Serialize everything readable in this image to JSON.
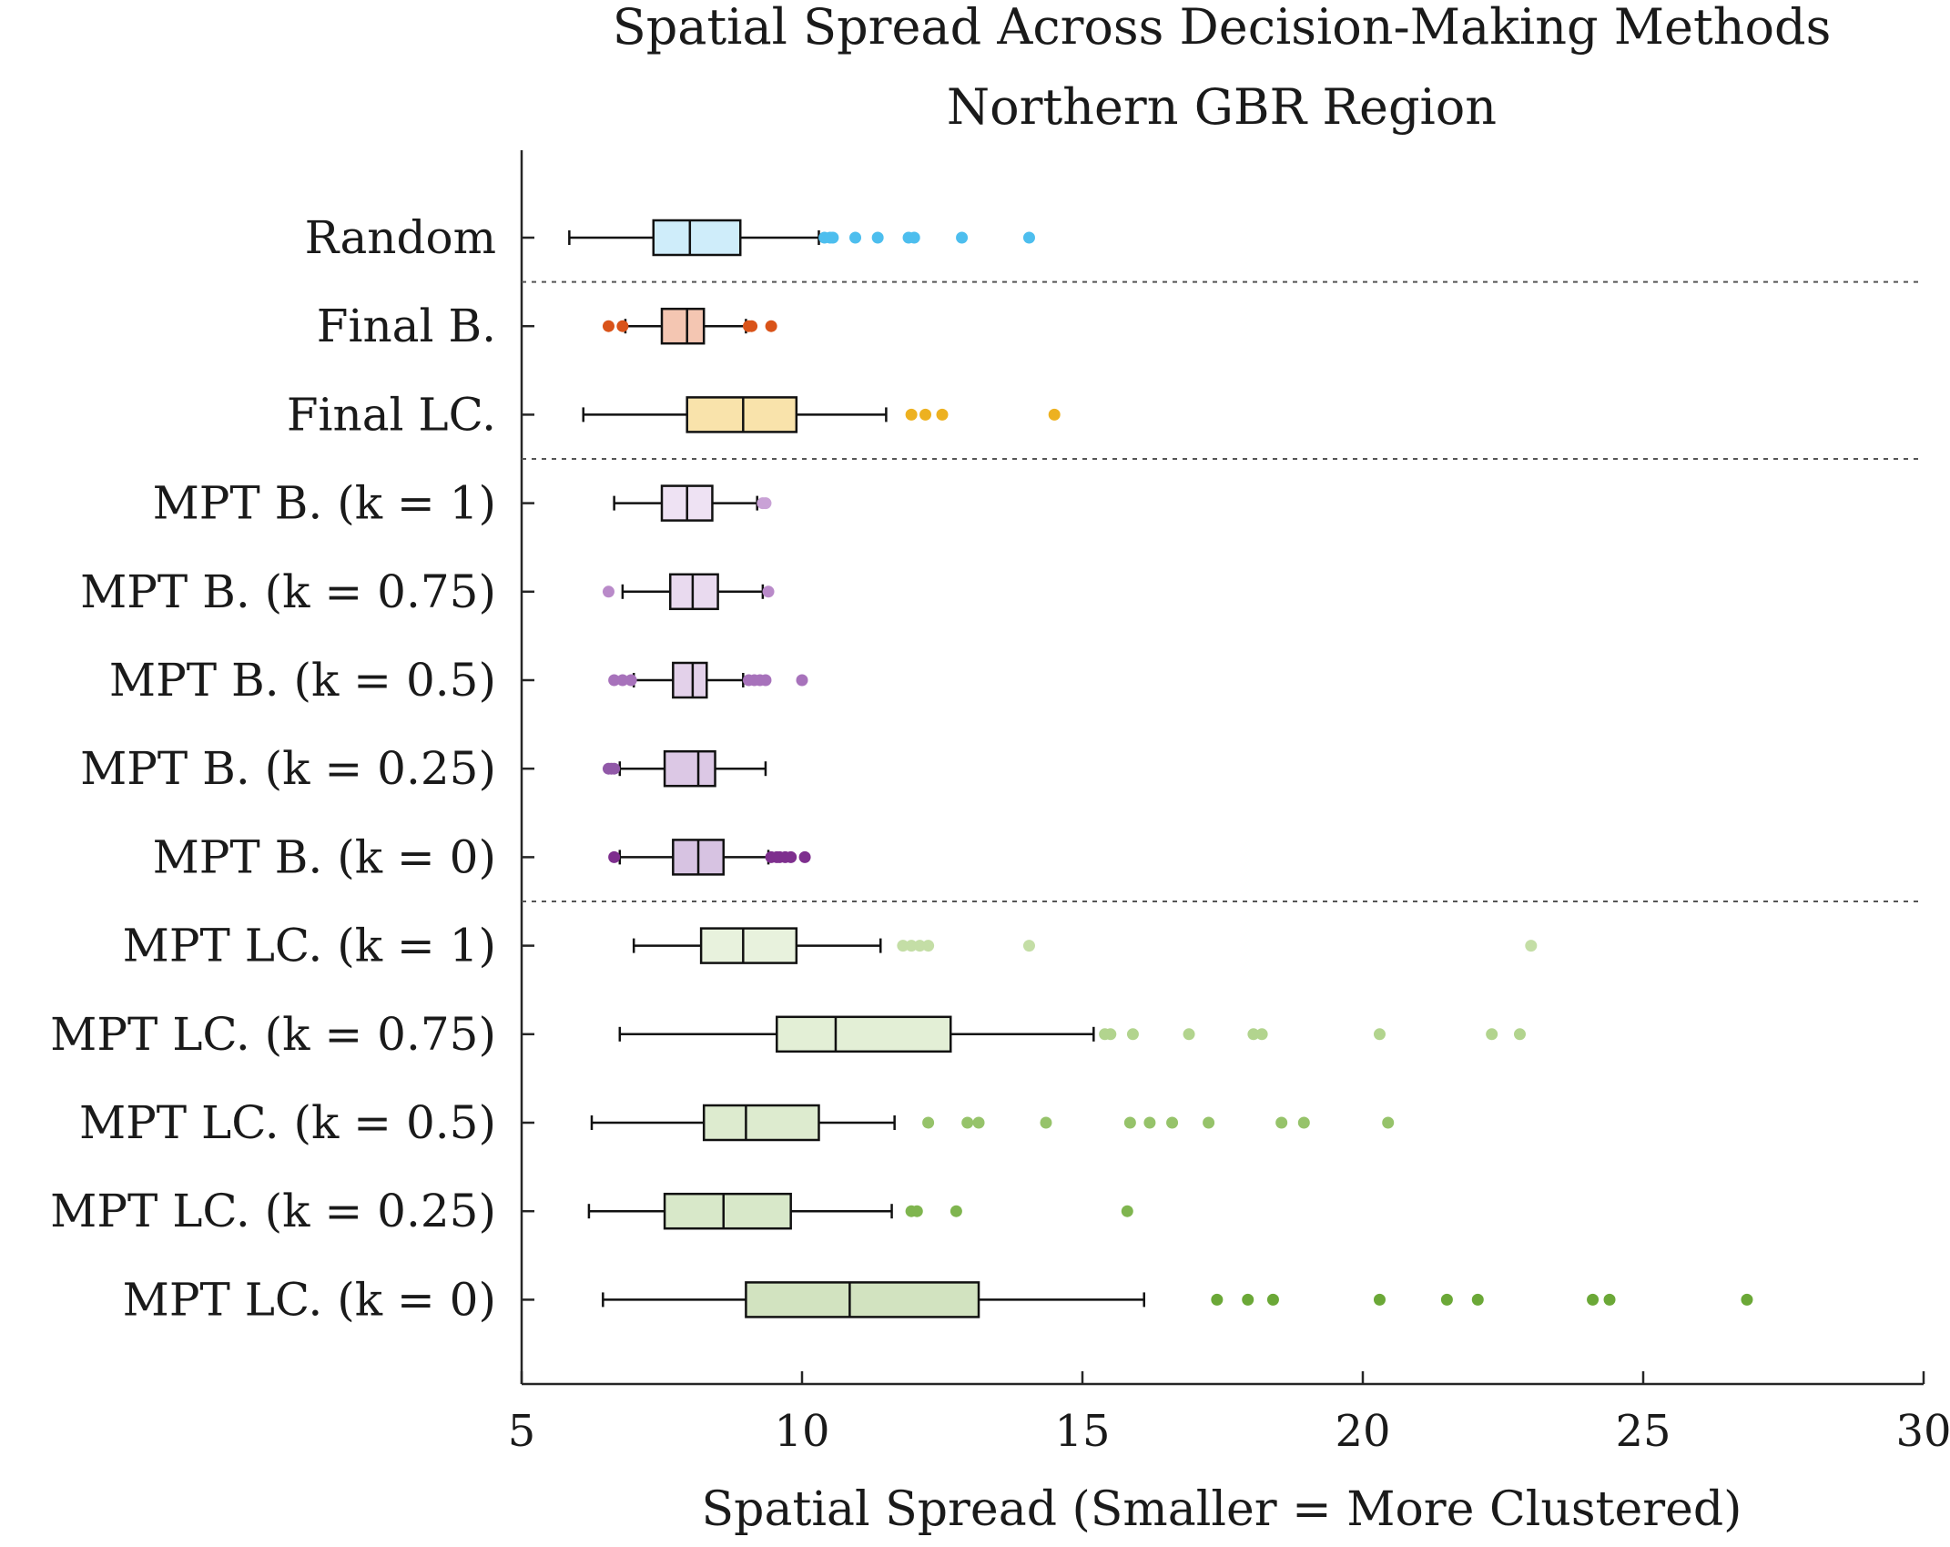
{
  "chart_data": {
    "type": "boxplot",
    "orientation": "horizontal",
    "title": "Spatial Spread Across Decision-Making Methods",
    "subtitle": "Northern GBR Region",
    "xlabel": "Spatial Spread (Smaller = More Clustered)",
    "ylabel": "",
    "xlim": [
      5,
      30
    ],
    "xticks": [
      5,
      10,
      15,
      20,
      25,
      30
    ],
    "grid": false,
    "group_separators_after": [
      "Random",
      "Final LC.",
      "MPT B. (k = 0)"
    ],
    "series": [
      {
        "name": "Random",
        "color": "#4DBEEE",
        "fill": "#CFEDFA",
        "whisker_low": 5.85,
        "q1": 7.35,
        "median": 8.0,
        "q3": 8.9,
        "whisker_high": 10.3,
        "outliers": [
          10.4,
          10.5,
          10.55,
          10.95,
          11.35,
          11.9,
          12.0,
          12.85,
          14.05
        ]
      },
      {
        "name": "Final B.",
        "color": "#D95319",
        "fill": "#F4C6B2",
        "whisker_low": 6.85,
        "q1": 7.5,
        "median": 7.95,
        "q3": 8.25,
        "whisker_high": 9.0,
        "outliers": [
          6.55,
          6.8,
          9.05,
          9.1,
          9.45
        ]
      },
      {
        "name": "Final LC.",
        "color": "#EDB120",
        "fill": "#F9E3AB",
        "whisker_low": 6.1,
        "q1": 7.95,
        "median": 8.95,
        "q3": 9.9,
        "whisker_high": 11.5,
        "outliers": [
          11.95,
          12.2,
          12.5,
          14.5
        ]
      },
      {
        "name": "MPT B. (k = 1)",
        "color": "#C9A2D6",
        "fill": "#EEE2F3",
        "whisker_low": 6.65,
        "q1": 7.5,
        "median": 7.95,
        "q3": 8.4,
        "whisker_high": 9.2,
        "outliers": [
          9.3,
          9.35
        ]
      },
      {
        "name": "MPT B. (k = 0.75)",
        "color": "#B98AC9",
        "fill": "#E9DAEF",
        "whisker_low": 6.8,
        "q1": 7.65,
        "median": 8.05,
        "q3": 8.5,
        "whisker_high": 9.3,
        "outliers": [
          6.55,
          9.4
        ]
      },
      {
        "name": "MPT B. (k = 0.5)",
        "color": "#A772BB",
        "fill": "#E3D1EA",
        "whisker_low": 7.0,
        "q1": 7.7,
        "median": 8.05,
        "q3": 8.3,
        "whisker_high": 8.95,
        "outliers": [
          6.65,
          6.8,
          6.95,
          9.05,
          9.15,
          9.25,
          9.35,
          10.0
        ]
      },
      {
        "name": "MPT B. (k = 0.25)",
        "color": "#9159A8",
        "fill": "#DCC8E5",
        "whisker_low": 6.75,
        "q1": 7.55,
        "median": 8.15,
        "q3": 8.45,
        "whisker_high": 9.35,
        "outliers": [
          6.55,
          6.6,
          6.65
        ]
      },
      {
        "name": "MPT B. (k = 0)",
        "color": "#7E2F8E",
        "fill": "#D7C3E2",
        "whisker_low": 6.75,
        "q1": 7.7,
        "median": 8.15,
        "q3": 8.6,
        "whisker_high": 9.4,
        "outliers": [
          6.65,
          9.45,
          9.55,
          9.6,
          9.7,
          9.8,
          10.05
        ]
      },
      {
        "name": "MPT LC. (k = 1)",
        "color": "#C4DEA6",
        "fill": "#E8F2DD",
        "whisker_low": 7.0,
        "q1": 8.2,
        "median": 8.95,
        "q3": 9.9,
        "whisker_high": 11.4,
        "outliers": [
          11.8,
          11.95,
          12.1,
          12.25,
          14.05,
          23.0
        ]
      },
      {
        "name": "MPT LC. (k = 0.75)",
        "color": "#B2D48E",
        "fill": "#E3EFD6",
        "whisker_low": 6.75,
        "q1": 9.55,
        "median": 10.6,
        "q3": 12.65,
        "whisker_high": 15.2,
        "outliers": [
          15.4,
          15.5,
          15.9,
          16.9,
          18.05,
          18.2,
          20.3,
          22.3,
          22.8
        ]
      },
      {
        "name": "MPT LC. (k = 0.5)",
        "color": "#96C36A",
        "fill": "#DDEBCF",
        "whisker_low": 6.25,
        "q1": 8.25,
        "median": 9.0,
        "q3": 10.3,
        "whisker_high": 11.65,
        "outliers": [
          12.25,
          12.95,
          13.15,
          14.35,
          15.85,
          16.2,
          16.6,
          17.25,
          18.55,
          18.95,
          20.45
        ]
      },
      {
        "name": "MPT LC. (k = 0.25)",
        "color": "#7FB54F",
        "fill": "#D8E8C9",
        "whisker_low": 6.2,
        "q1": 7.55,
        "median": 8.6,
        "q3": 9.8,
        "whisker_high": 11.6,
        "outliers": [
          11.95,
          12.05,
          12.75,
          15.8
        ]
      },
      {
        "name": "MPT LC. (k = 0)",
        "color": "#6BA837",
        "fill": "#D2E3C0",
        "whisker_low": 6.45,
        "q1": 9.0,
        "median": 10.85,
        "q3": 13.15,
        "whisker_high": 16.1,
        "outliers": [
          17.4,
          17.95,
          18.4,
          20.3,
          21.5,
          22.05,
          24.1,
          24.4,
          26.85
        ]
      }
    ]
  }
}
